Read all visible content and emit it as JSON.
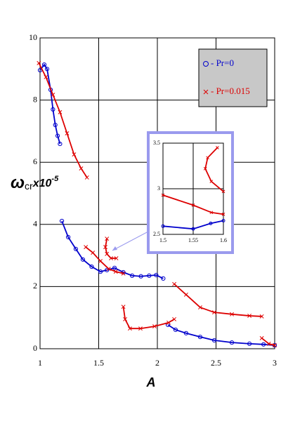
{
  "chart_data": [
    {
      "type": "line",
      "x_label": "A",
      "y_label": {
        "symbol": "ω",
        "sub": "cr",
        "factor": "x10",
        "exp": "-5"
      },
      "xlim": [
        1,
        3
      ],
      "xticks": [
        1,
        1.5,
        2,
        2.5,
        3
      ],
      "ylim": [
        0,
        10
      ],
      "yticks": [
        0,
        2,
        4,
        6,
        8,
        10
      ],
      "grid": true,
      "legend": "upper right",
      "series": [
        {
          "name": "- Pr=0",
          "color": "#0000cc",
          "marker": "circle",
          "x": [
            1.0,
            1.036,
            1.06,
            1.09,
            1.11,
            1.13,
            1.15,
            1.17,
            null,
            1.186,
            1.24,
            1.305,
            1.365,
            1.44,
            1.515,
            1.57,
            1.635,
            1.71,
            1.785,
            1.86,
            1.93,
            1.99,
            2.05,
            null,
            2.09,
            2.155,
            2.245,
            2.365,
            2.485,
            2.635,
            2.785,
            2.905,
            3.0
          ],
          "values": [
            8.96,
            9.14,
            9.0,
            8.33,
            7.7,
            7.2,
            6.85,
            6.59,
            null,
            4.11,
            3.59,
            3.21,
            2.87,
            2.64,
            2.48,
            2.53,
            2.6,
            2.46,
            2.35,
            2.33,
            2.35,
            2.37,
            2.26,
            null,
            0.77,
            0.61,
            0.5,
            0.38,
            0.27,
            0.2,
            0.16,
            0.14,
            0.11
          ]
        },
        {
          "name": "- Pr=0.015",
          "color": "#dd0000",
          "marker": "x",
          "x": [
            0.99,
            1.05,
            1.11,
            1.17,
            1.23,
            1.29,
            1.35,
            1.4,
            null,
            1.39,
            1.45,
            1.515,
            1.585,
            1.645,
            1.71,
            null,
            1.57,
            1.557,
            1.57,
            1.605,
            1.65,
            null,
            1.71,
            1.725,
            1.766,
            1.856,
            1.976,
            2.096,
            2.144,
            null,
            2.144,
            2.245,
            2.365,
            2.485,
            2.635,
            2.785,
            2.89,
            null,
            2.89,
            2.95,
            3.0
          ],
          "values": [
            9.19,
            8.74,
            8.17,
            7.61,
            6.93,
            6.25,
            5.8,
            5.51,
            null,
            3.27,
            3.09,
            2.82,
            2.57,
            2.48,
            2.42,
            null,
            3.54,
            3.27,
            3.05,
            2.91,
            2.91,
            null,
            1.35,
            0.95,
            0.65,
            0.65,
            0.72,
            0.84,
            0.95,
            null,
            2.08,
            1.74,
            1.33,
            1.17,
            1.11,
            1.06,
            1.04,
            null,
            0.34,
            0.16,
            0.11
          ]
        }
      ]
    },
    {
      "type": "line",
      "xlim": [
        1.5,
        1.6
      ],
      "xticks": [
        1.5,
        1.55,
        1.6
      ],
      "ylim": [
        2.5,
        3.5
      ],
      "yticks": [
        2.5,
        3,
        3.5
      ],
      "grid": true,
      "series": [
        {
          "color": "#0000cc",
          "marker": "circle",
          "x": [
            1.5,
            1.55,
            1.579,
            1.6
          ],
          "values": [
            2.59,
            2.56,
            2.62,
            2.65
          ]
        },
        {
          "color": "#dd0000",
          "marker": "x",
          "x": [
            1.5,
            1.55,
            1.58,
            1.6,
            null,
            1.6,
            1.58,
            1.57,
            1.574,
            1.59
          ],
          "values": [
            2.93,
            2.82,
            2.74,
            2.72,
            null,
            2.97,
            3.08,
            3.22,
            3.34,
            3.45
          ]
        }
      ]
    }
  ]
}
